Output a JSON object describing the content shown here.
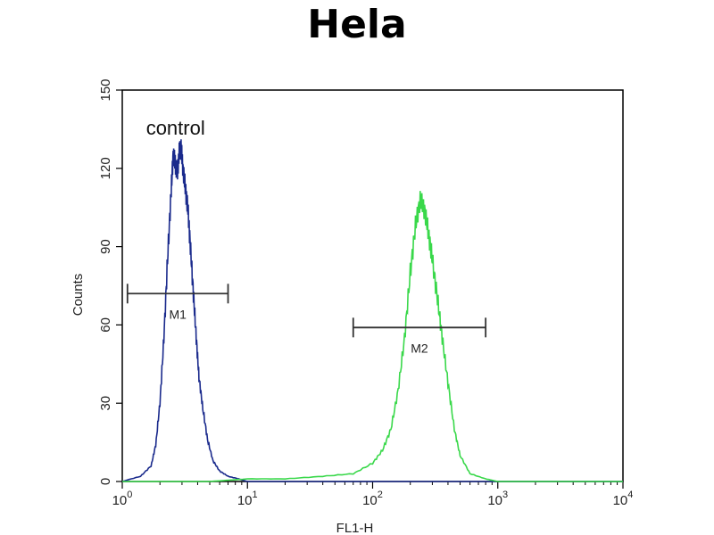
{
  "chart_data": {
    "type": "line",
    "title": "Hela",
    "xlabel": "FL1-H",
    "ylabel": "Counts",
    "xscale": "log",
    "xlim": [
      1,
      10000
    ],
    "ylim": [
      0,
      150
    ],
    "yticks": [
      0,
      30,
      60,
      90,
      120,
      150
    ],
    "xticks": [
      {
        "value": 1,
        "base": "10",
        "exp": "0"
      },
      {
        "value": 10,
        "base": "10",
        "exp": "1"
      },
      {
        "value": 100,
        "base": "10",
        "exp": "2"
      },
      {
        "value": 1000,
        "base": "10",
        "exp": "3"
      },
      {
        "value": 10000,
        "base": "10",
        "exp": "4"
      }
    ],
    "series": [
      {
        "color": "#1a2a8c",
        "points": [
          [
            1.0,
            0
          ],
          [
            1.4,
            2
          ],
          [
            1.7,
            6
          ],
          [
            1.85,
            14
          ],
          [
            2.0,
            30
          ],
          [
            2.15,
            55
          ],
          [
            2.3,
            85
          ],
          [
            2.45,
            110
          ],
          [
            2.55,
            125
          ],
          [
            2.65,
            122
          ],
          [
            2.75,
            118
          ],
          [
            2.85,
            126
          ],
          [
            2.95,
            128
          ],
          [
            3.05,
            120
          ],
          [
            3.2,
            112
          ],
          [
            3.35,
            104
          ],
          [
            3.5,
            90
          ],
          [
            3.7,
            72
          ],
          [
            3.9,
            55
          ],
          [
            4.1,
            40
          ],
          [
            4.4,
            28
          ],
          [
            4.8,
            16
          ],
          [
            5.3,
            8
          ],
          [
            6.0,
            4
          ],
          [
            7.0,
            2
          ],
          [
            8.5,
            1
          ],
          [
            10,
            0
          ],
          [
            20,
            0
          ],
          [
            10000,
            0
          ]
        ]
      },
      {
        "color": "#39d84a",
        "points": [
          [
            1.0,
            0
          ],
          [
            2,
            0
          ],
          [
            5,
            0
          ],
          [
            10,
            1
          ],
          [
            20,
            1
          ],
          [
            40,
            2
          ],
          [
            70,
            3
          ],
          [
            100,
            7
          ],
          [
            120,
            12
          ],
          [
            140,
            20
          ],
          [
            160,
            35
          ],
          [
            180,
            55
          ],
          [
            200,
            80
          ],
          [
            220,
            98
          ],
          [
            240,
            108
          ],
          [
            260,
            104
          ],
          [
            280,
            95
          ],
          [
            300,
            85
          ],
          [
            330,
            70
          ],
          [
            360,
            55
          ],
          [
            400,
            38
          ],
          [
            450,
            20
          ],
          [
            500,
            10
          ],
          [
            600,
            3
          ],
          [
            800,
            1
          ],
          [
            1000,
            0
          ],
          [
            10000,
            0
          ]
        ]
      }
    ],
    "gates": [
      {
        "label": "M1",
        "x_start": 1.1,
        "x_end": 7.0,
        "y": 72
      },
      {
        "label": "M2",
        "x_start": 70,
        "x_end": 800,
        "y": 59
      }
    ],
    "annotations": [
      {
        "text": "control",
        "x": 1.55,
        "y": 133
      }
    ]
  }
}
